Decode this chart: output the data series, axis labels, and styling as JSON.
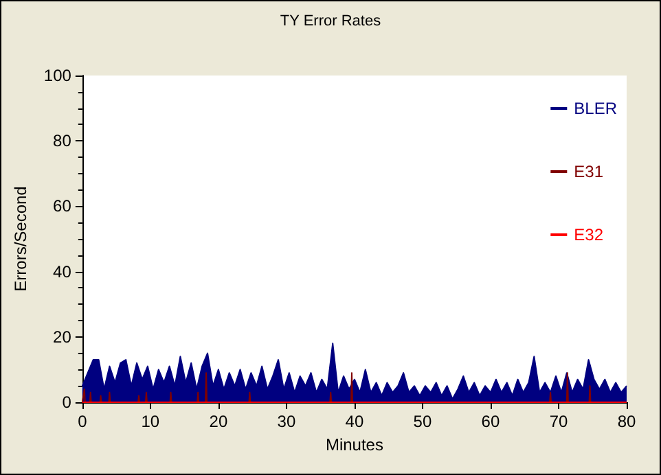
{
  "chart_data": {
    "type": "area",
    "title": "TY Error Rates",
    "xlabel": "Minutes",
    "ylabel": "Errors/Second",
    "xlim": [
      0,
      80
    ],
    "xticks": [
      0,
      10,
      20,
      30,
      40,
      50,
      60,
      70,
      80
    ],
    "ylim": [
      0,
      100
    ],
    "yticks": [
      0,
      20,
      40,
      60,
      80,
      100
    ],
    "grid": false,
    "legend": "top right",
    "marker": "none",
    "series": [
      {
        "name": "BLER",
        "color": "#000080",
        "x": [
          0,
          0.8,
          1.6,
          2.4,
          3.2,
          4,
          4.8,
          5.6,
          6.4,
          7.2,
          8,
          8.8,
          9.6,
          10.4,
          11.2,
          12,
          12.8,
          13.6,
          14.4,
          15.2,
          16,
          16.8,
          17.6,
          18.4,
          19.2,
          20,
          20.8,
          21.6,
          22.4,
          23.2,
          24,
          24.8,
          25.6,
          26.4,
          27.2,
          28,
          28.8,
          29.6,
          30.4,
          31.2,
          32,
          32.8,
          33.6,
          34.4,
          35.2,
          36,
          36.8,
          37.6,
          38.4,
          39.2,
          40,
          40.8,
          41.6,
          42.4,
          43.2,
          44,
          44.8,
          45.6,
          46.4,
          47.2,
          48,
          48.8,
          49.6,
          50.4,
          51.2,
          52,
          52.8,
          53.6,
          54.4,
          55.2,
          56,
          56.8,
          57.6,
          58.4,
          59.2,
          60,
          60.8,
          61.6,
          62.4,
          63.2,
          64,
          64.8,
          65.6,
          66.4,
          67.2,
          68,
          68.8,
          69.6,
          70.4,
          71.2,
          72,
          72.8,
          73.6,
          74.4,
          75.2,
          76,
          76.8,
          77.6,
          78.4,
          79.2,
          80
        ],
        "values": [
          5,
          9,
          13,
          13,
          4,
          11,
          6,
          12,
          13,
          5,
          12,
          7,
          11,
          4,
          10,
          6,
          11,
          5,
          14,
          6,
          12,
          4,
          11,
          15,
          5,
          10,
          4,
          9,
          5,
          10,
          4,
          9,
          5,
          11,
          4,
          8,
          13,
          4,
          9,
          3,
          8,
          5,
          9,
          3,
          7,
          4,
          18,
          3,
          8,
          4,
          7,
          3,
          10,
          3,
          6,
          2,
          6,
          3,
          5,
          9,
          3,
          5,
          2,
          5,
          3,
          6,
          2,
          5,
          1,
          4,
          8,
          3,
          6,
          2,
          5,
          3,
          7,
          3,
          6,
          2,
          7,
          3,
          6,
          14,
          3,
          6,
          3,
          8,
          3,
          9,
          3,
          7,
          4,
          13,
          7,
          4,
          7,
          3,
          6,
          3,
          5
        ]
      },
      {
        "name": "E31",
        "color": "#800000",
        "type": "line",
        "x": [
          0,
          0.3,
          0.4,
          1.1,
          1.2,
          1.3,
          2.6,
          2.7,
          2.8,
          3.9,
          4,
          4.1,
          8.2,
          8.3,
          8.4,
          9.3,
          9.4,
          9.5,
          12.9,
          13,
          13.1,
          16.9,
          17,
          17.1,
          18.1,
          18.2,
          18.3,
          24.5,
          24.6,
          24.7,
          36.4,
          36.5,
          36.6,
          39.5,
          39.6,
          39.7,
          68.7,
          68.8,
          68.9,
          71.2,
          71.3,
          71.4,
          74.5,
          74.6,
          74.7,
          80
        ],
        "values": [
          0,
          4,
          0,
          0,
          3,
          0,
          0,
          2,
          0,
          0,
          3,
          0,
          0,
          2,
          0,
          0,
          3,
          0,
          0,
          3,
          0,
          0,
          3,
          0,
          0,
          9,
          0,
          0,
          3,
          0,
          0,
          3,
          0,
          0,
          9,
          0,
          0,
          3,
          0,
          0,
          9,
          0,
          0,
          5,
          0,
          0
        ]
      },
      {
        "name": "E32",
        "color": "#ff0000",
        "type": "line",
        "x": [
          0,
          80
        ],
        "values": [
          0,
          0
        ]
      }
    ]
  }
}
